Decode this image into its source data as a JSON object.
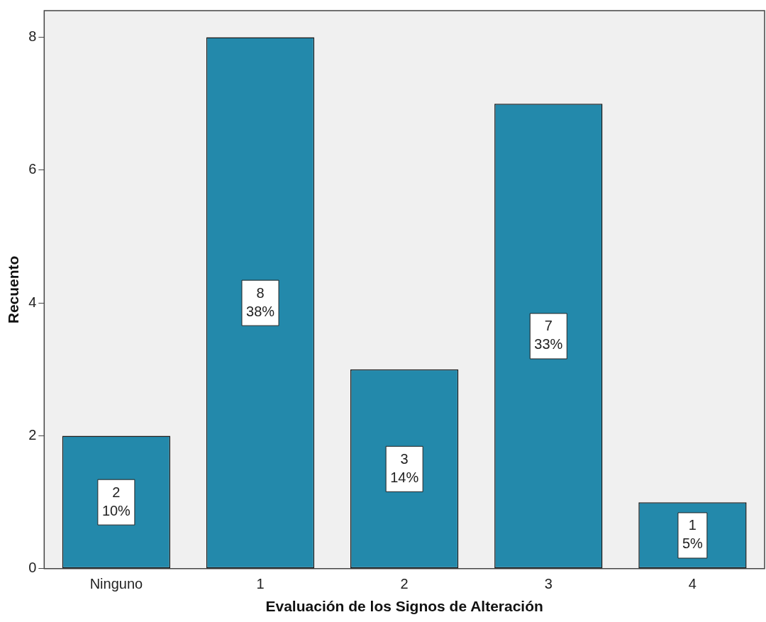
{
  "chart_data": {
    "type": "bar",
    "xlabel": "Evaluación de los Signos de Alteración",
    "ylabel": "Recuento",
    "categories": [
      "Ninguno",
      "1",
      "2",
      "3",
      "4"
    ],
    "values": [
      2,
      8,
      3,
      7,
      1
    ],
    "value_labels": [
      "2\n10%",
      "8\n38%",
      "3\n14%",
      "7\n33%",
      "1\n5%"
    ],
    "color": "#2389ab",
    "ylim": [
      0,
      8.4
    ],
    "yticks": [
      0,
      2,
      4,
      6,
      8
    ],
    "grid": false,
    "legend": false
  }
}
